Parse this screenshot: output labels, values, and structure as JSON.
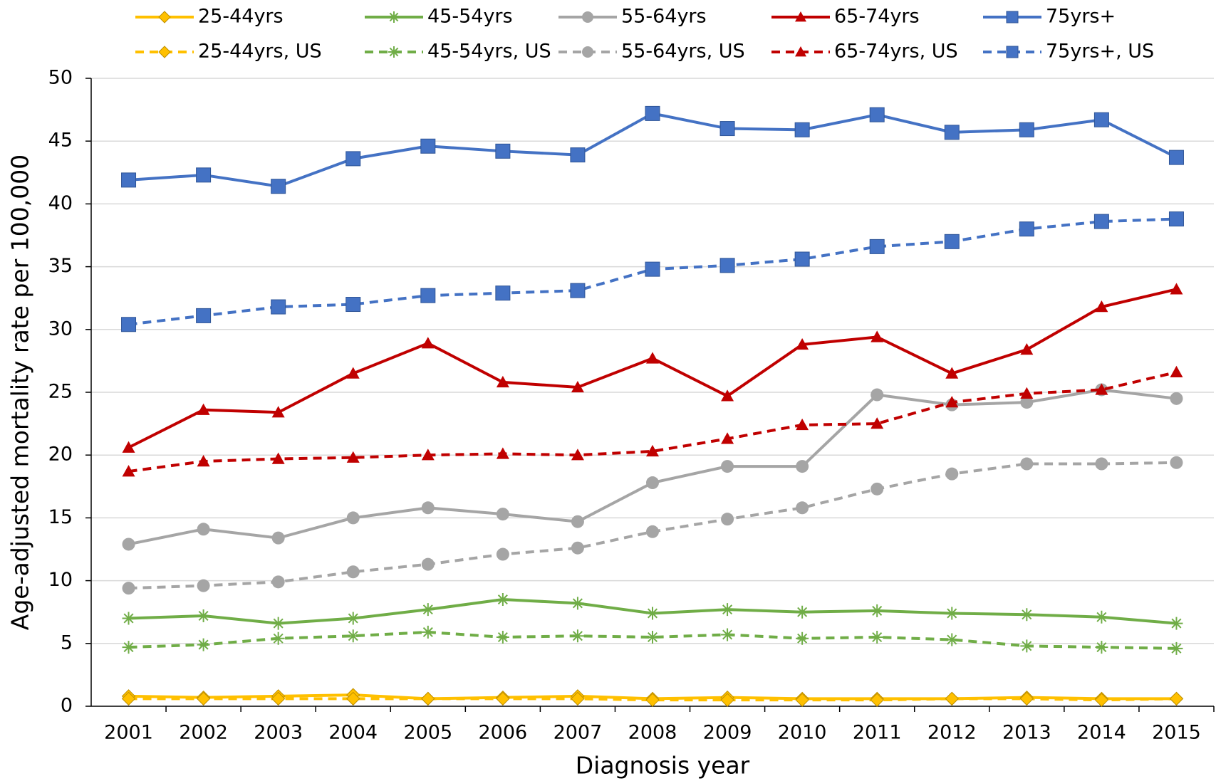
{
  "chart_data": {
    "type": "line",
    "x_label": "Diagnosis year",
    "y_label": "Age-adjusted mortality rate per 100,000",
    "categories": [
      "2001",
      "2002",
      "2003",
      "2004",
      "2005",
      "2006",
      "2007",
      "2008",
      "2009",
      "2010",
      "2011",
      "2012",
      "2013",
      "2014",
      "2015"
    ],
    "ylim": [
      0,
      50
    ],
    "yticks": [
      0,
      5,
      10,
      15,
      20,
      25,
      30,
      35,
      40,
      45,
      50
    ],
    "grid": true,
    "series": [
      {
        "name": "25-44yrs",
        "color": "#ffc000",
        "marker": "diamond",
        "dash": false,
        "values": [
          0.8,
          0.7,
          0.8,
          0.9,
          0.6,
          0.7,
          0.8,
          0.6,
          0.7,
          0.6,
          0.6,
          0.6,
          0.7,
          0.6,
          0.6
        ]
      },
      {
        "name": "45-54yrs",
        "color": "#70ad47",
        "marker": "star",
        "dash": false,
        "values": [
          7.0,
          7.2,
          6.6,
          7.0,
          7.7,
          8.5,
          8.2,
          7.4,
          7.7,
          7.5,
          7.6,
          7.4,
          7.3,
          7.1,
          6.6
        ]
      },
      {
        "name": "55-64yrs",
        "color": "#a5a5a5",
        "marker": "circle",
        "dash": false,
        "values": [
          12.9,
          14.1,
          13.4,
          15.0,
          15.8,
          15.3,
          14.7,
          17.8,
          19.1,
          19.1,
          24.8,
          24.0,
          24.2,
          25.2,
          24.5
        ]
      },
      {
        "name": "65-74yrs",
        "color": "#c00000",
        "marker": "triangle",
        "dash": false,
        "values": [
          20.6,
          23.6,
          23.4,
          26.5,
          28.9,
          25.8,
          25.4,
          27.7,
          24.7,
          28.8,
          29.4,
          26.5,
          28.4,
          31.8,
          33.2
        ]
      },
      {
        "name": "75yrs+",
        "color": "#4472c4",
        "marker": "square",
        "dash": false,
        "values": [
          41.9,
          42.3,
          41.4,
          43.6,
          44.6,
          44.2,
          43.9,
          47.2,
          46.0,
          45.9,
          47.1,
          45.7,
          45.9,
          46.7,
          43.7
        ]
      },
      {
        "name": "25-44yrs, US",
        "color": "#ffc000",
        "marker": "diamond",
        "dash": true,
        "values": [
          0.6,
          0.6,
          0.6,
          0.6,
          0.6,
          0.6,
          0.6,
          0.5,
          0.5,
          0.5,
          0.5,
          0.6,
          0.6,
          0.5,
          0.6
        ]
      },
      {
        "name": "45-54yrs, US",
        "color": "#70ad47",
        "marker": "star",
        "dash": true,
        "values": [
          4.7,
          4.9,
          5.4,
          5.6,
          5.9,
          5.5,
          5.6,
          5.5,
          5.7,
          5.4,
          5.5,
          5.3,
          4.8,
          4.7,
          4.6
        ]
      },
      {
        "name": "55-64yrs, US",
        "color": "#a5a5a5",
        "marker": "circle",
        "dash": true,
        "values": [
          9.4,
          9.6,
          9.9,
          10.7,
          11.3,
          12.1,
          12.6,
          13.9,
          14.9,
          15.8,
          17.3,
          18.5,
          19.3,
          19.3,
          19.4
        ]
      },
      {
        "name": "65-74yrs, US",
        "color": "#c00000",
        "marker": "triangle",
        "dash": true,
        "values": [
          18.7,
          19.5,
          19.7,
          19.8,
          20.0,
          20.1,
          20.0,
          20.3,
          21.3,
          22.4,
          22.5,
          24.2,
          24.9,
          25.2,
          26.6
        ]
      },
      {
        "name": "75yrs+, US",
        "color": "#4472c4",
        "marker": "square",
        "dash": true,
        "values": [
          30.4,
          31.1,
          31.8,
          32.0,
          32.7,
          32.9,
          33.1,
          34.8,
          35.1,
          35.6,
          36.6,
          37.0,
          38.0,
          38.6,
          38.8
        ]
      }
    ]
  }
}
